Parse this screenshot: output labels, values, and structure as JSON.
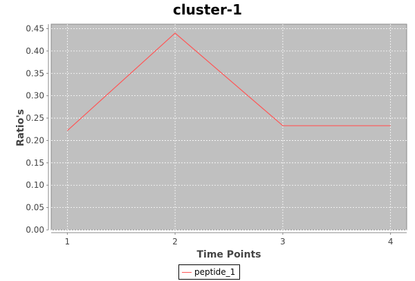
{
  "chart_data": {
    "type": "line",
    "title": "cluster-1",
    "xlabel": "Time Points",
    "ylabel": "Ratio's",
    "x": [
      1,
      2,
      3,
      4
    ],
    "x_ticks": [
      "1",
      "2",
      "3",
      "4"
    ],
    "y_ticks": [
      "0.00",
      "0.05",
      "0.10",
      "0.15",
      "0.20",
      "0.25",
      "0.30",
      "0.35",
      "0.40",
      "0.45"
    ],
    "xlim": [
      0.85,
      4.15
    ],
    "ylim": [
      0,
      0.46
    ],
    "grid": true,
    "legend_position": "bottom",
    "plot_background": "#c0c0c0",
    "series": [
      {
        "name": "peptide_1",
        "color": "#ff5555",
        "values": [
          0.222,
          0.44,
          0.233,
          0.233
        ]
      }
    ]
  }
}
